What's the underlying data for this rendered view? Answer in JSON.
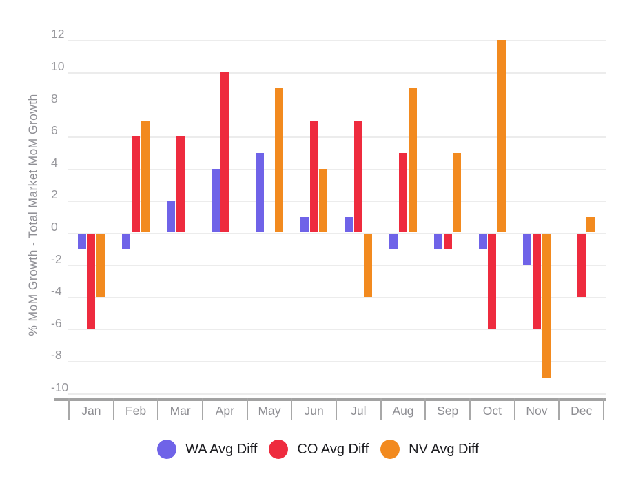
{
  "chart_data": {
    "type": "bar",
    "title": "",
    "xlabel": "",
    "ylabel": "% MoM Growth - Total Market MoM Growth",
    "categories": [
      "Jan",
      "Feb",
      "Mar",
      "Apr",
      "May",
      "Jun",
      "Jul",
      "Aug",
      "Sep",
      "Oct",
      "Nov",
      "Dec"
    ],
    "series": [
      {
        "name": "WA Avg Diff",
        "color": "#6f63e8",
        "values": [
          -1,
          -1,
          2,
          4,
          5,
          1,
          1,
          -1,
          -1,
          -1,
          -2,
          0
        ]
      },
      {
        "name": "CO Avg Diff",
        "color": "#ee2b3e",
        "values": [
          -6,
          6,
          6,
          10,
          0,
          7,
          7,
          5,
          -1,
          -6,
          -6,
          -4
        ]
      },
      {
        "name": "NV Avg Diff",
        "color": "#f28a1f",
        "values": [
          -4,
          7,
          0,
          0,
          9,
          4,
          -4,
          9,
          5,
          12,
          -9,
          1
        ]
      }
    ],
    "yticks": [
      12,
      10,
      8,
      6,
      4,
      2,
      0,
      -2,
      -4,
      -6,
      -8,
      -10
    ],
    "ylim": [
      -10,
      12
    ],
    "grid": true,
    "legend_position": "bottom",
    "note_zero_values_render_no_bar": true,
    "background_color": "#ffffff",
    "axis_text_color": "#8f8f95",
    "gridline_color": "#ececec",
    "axis_line_color": "#a2a2a2"
  }
}
